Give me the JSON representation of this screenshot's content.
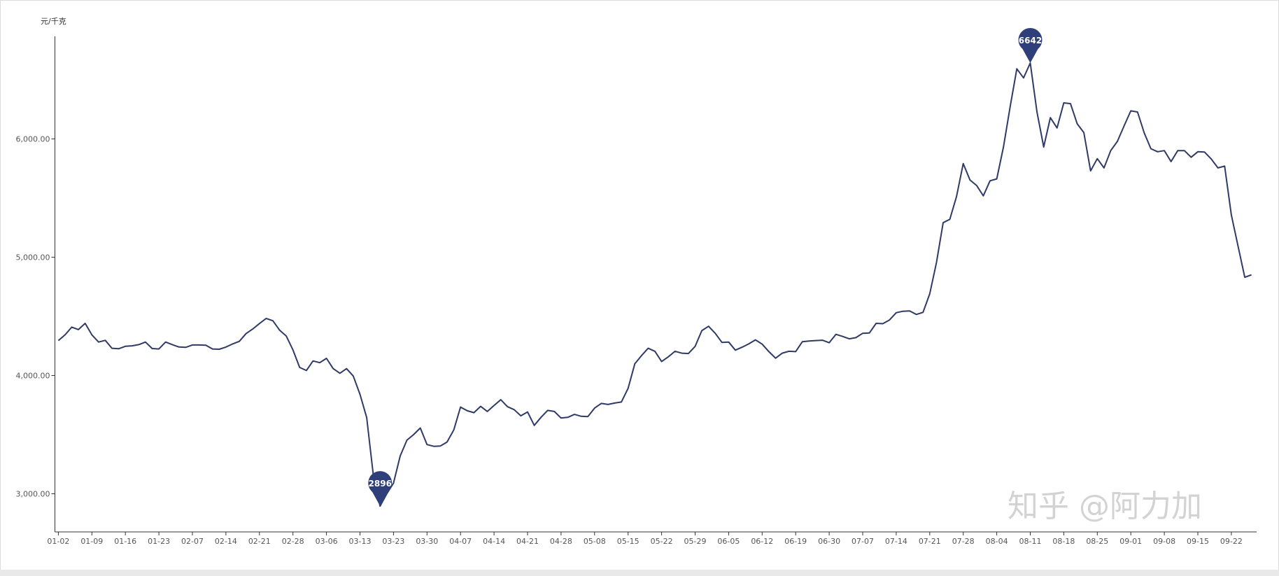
{
  "chart_data": {
    "type": "line",
    "y_unit_label": "元/千克",
    "y_ticks": [
      3000,
      4000,
      5000,
      6000
    ],
    "y_tick_labels": [
      "3,000.00",
      "4,000.00",
      "5,000.00",
      "6,000.00"
    ],
    "ylim": [
      2650,
      6850
    ],
    "x_tick_labels": [
      "01-02",
      "01-09",
      "01-16",
      "01-23",
      "02-07",
      "02-14",
      "02-21",
      "02-28",
      "03-06",
      "03-13",
      "03-23",
      "03-30",
      "04-07",
      "04-14",
      "04-21",
      "04-28",
      "05-08",
      "05-15",
      "05-22",
      "05-29",
      "06-05",
      "06-12",
      "06-19",
      "06-30",
      "07-07",
      "07-14",
      "07-21",
      "07-28",
      "08-04",
      "08-11",
      "08-18",
      "08-25",
      "09-01",
      "09-08",
      "09-15",
      "09-22"
    ],
    "x_tick_every_points": 5,
    "grid": false,
    "legend": "none",
    "line_color": "#2f3a66",
    "marker_color": "#2f3f7a",
    "values": [
      4295,
      4344,
      4409,
      4388,
      4441,
      4344,
      4283,
      4297,
      4230,
      4226,
      4247,
      4251,
      4261,
      4283,
      4228,
      4224,
      4283,
      4261,
      4241,
      4238,
      4258,
      4258,
      4256,
      4224,
      4222,
      4240,
      4267,
      4289,
      4354,
      4393,
      4439,
      4482,
      4463,
      4384,
      4334,
      4216,
      4068,
      4042,
      4123,
      4108,
      4145,
      4058,
      4019,
      4058,
      3995,
      3841,
      3644,
      3150,
      2896,
      3000,
      3090,
      3320,
      3453,
      3500,
      3556,
      3416,
      3401,
      3404,
      3438,
      3540,
      3733,
      3702,
      3686,
      3739,
      3696,
      3746,
      3795,
      3736,
      3711,
      3659,
      3692,
      3578,
      3646,
      3705,
      3696,
      3640,
      3646,
      3671,
      3655,
      3652,
      3724,
      3764,
      3755,
      3767,
      3776,
      3891,
      4099,
      4168,
      4230,
      4205,
      4118,
      4158,
      4205,
      4189,
      4186,
      4246,
      4379,
      4416,
      4357,
      4280,
      4283,
      4214,
      4239,
      4267,
      4301,
      4265,
      4202,
      4146,
      4189,
      4205,
      4202,
      4286,
      4292,
      4295,
      4298,
      4277,
      4348,
      4330,
      4310,
      4320,
      4357,
      4360,
      4441,
      4438,
      4469,
      4531,
      4543,
      4546,
      4516,
      4534,
      4690,
      4954,
      5292,
      5320,
      5513,
      5792,
      5653,
      5606,
      5519,
      5646,
      5662,
      5932,
      6274,
      6593,
      6516,
      6642,
      6227,
      5932,
      6180,
      6093,
      6305,
      6298,
      6128,
      6053,
      5730,
      5833,
      5755,
      5901,
      5979,
      6110,
      6237,
      6228,
      6050,
      5917,
      5892,
      5901,
      5808,
      5901,
      5901,
      5845,
      5892,
      5889,
      5830,
      5755,
      5770,
      5357,
      5093,
      4830,
      4851
    ],
    "annotations": [
      {
        "type": "max",
        "label": "6642",
        "value": 6642
      },
      {
        "type": "min",
        "label": "2896",
        "value": 2896
      }
    ]
  },
  "watermark": "知乎 @阿力加"
}
